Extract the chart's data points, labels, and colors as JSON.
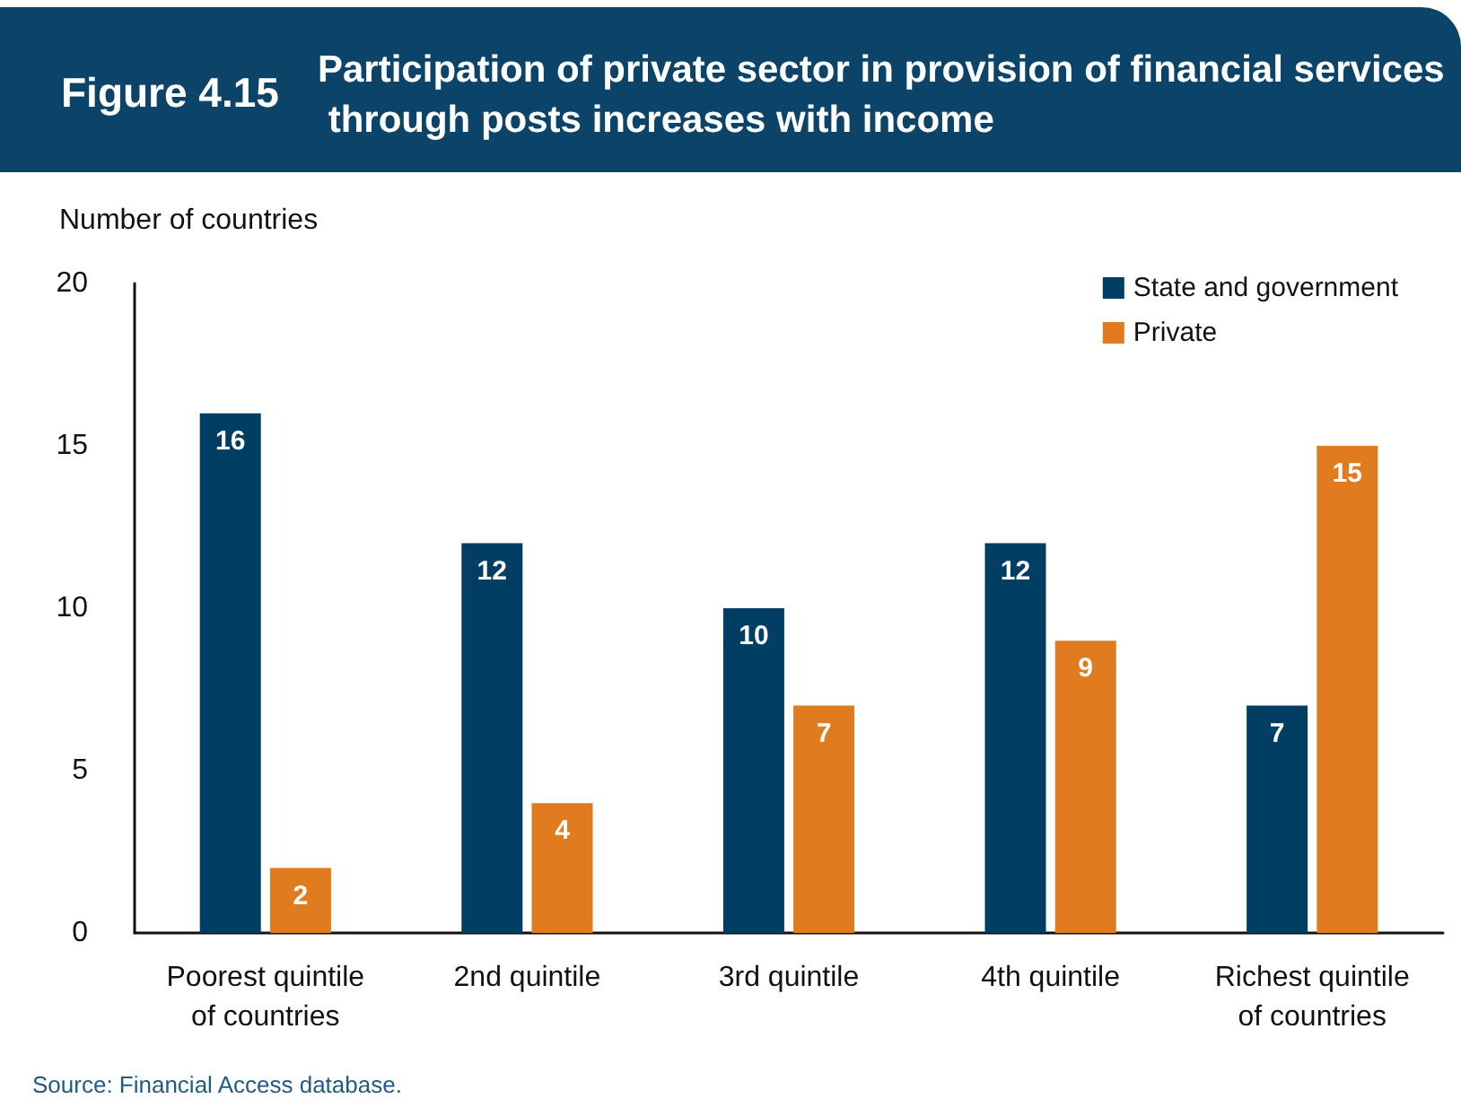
{
  "chart_data": {
    "type": "bar",
    "title": "Participation of private sector in provision of financial services through posts increases with income",
    "ylabel": "Number of countries",
    "annotations": [
      "Figure 4.15",
      "Source: Financial Access database."
    ],
    "categories": [
      "Poorest quintile\nof countries",
      "2nd quintile",
      "3rd quintile",
      "4th quintile",
      "Richest quintile\nof countries"
    ],
    "series": [
      {
        "name": "State and government",
        "color": "#003f63",
        "values": [
          16,
          12,
          10,
          12,
          7
        ]
      },
      {
        "name": "Private",
        "color": "#e07b20",
        "values": [
          2,
          4,
          7,
          9,
          15
        ]
      }
    ],
    "ylim": [
      0,
      20
    ],
    "yticks": [
      0,
      5,
      10,
      15,
      20
    ],
    "grid": false,
    "legend": "top right",
    "data_labels": true
  }
}
